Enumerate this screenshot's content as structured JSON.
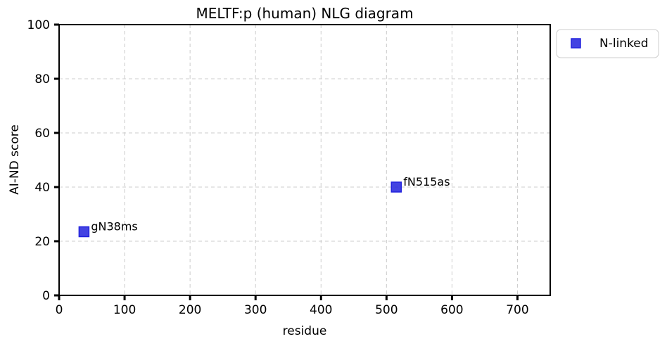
{
  "chart_data": {
    "type": "scatter",
    "title": "MELTF:p (human) NLG diagram",
    "xlabel": "residue",
    "ylabel": "AI-ND score",
    "xlim": [
      0,
      750
    ],
    "ylim": [
      0,
      100
    ],
    "xticks": [
      0,
      100,
      200,
      300,
      400,
      500,
      600,
      700
    ],
    "yticks": [
      0,
      20,
      40,
      60,
      80,
      100
    ],
    "grid": true,
    "legend_position": "outside-top-right",
    "series": [
      {
        "name": "N-linked",
        "color": "#2222dd",
        "marker": "square",
        "points": [
          {
            "x": 38,
            "y": 23.5,
            "label": "gN38ms"
          },
          {
            "x": 515,
            "y": 40,
            "label": "fN515as"
          }
        ]
      }
    ]
  }
}
